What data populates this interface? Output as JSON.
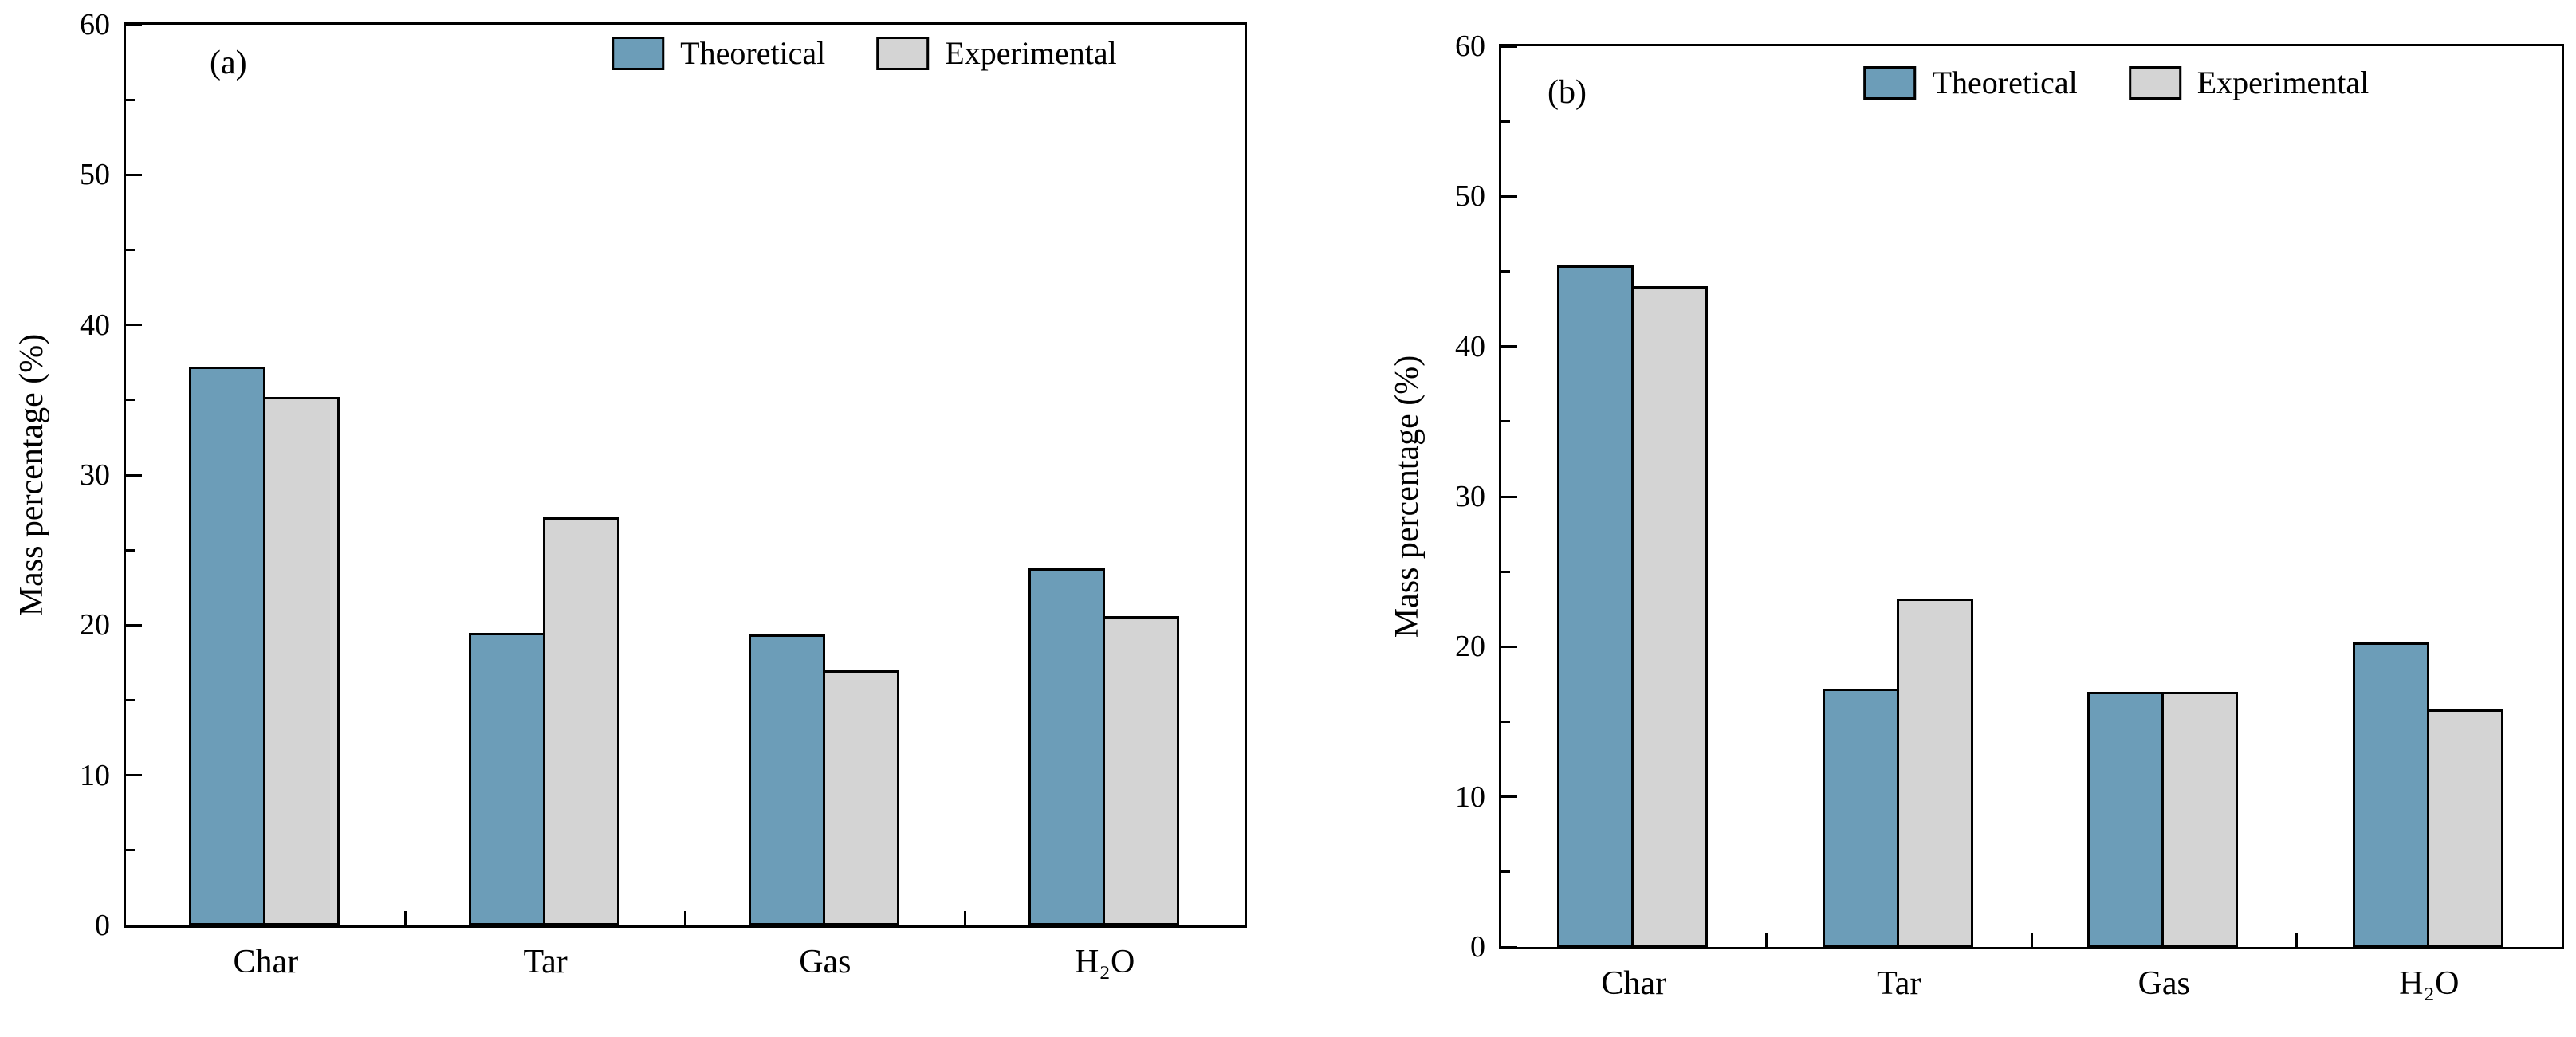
{
  "chart_data": [
    {
      "type": "bar",
      "panel_label": "(a)",
      "categories": [
        "Char",
        "Tar",
        "Gas",
        "H₂O"
      ],
      "series": [
        {
          "name": "Theoretical",
          "color": "#6c9db8",
          "values": [
            37.2,
            19.5,
            19.4,
            23.8
          ]
        },
        {
          "name": "Experimental",
          "color": "#d4d4d4",
          "values": [
            35.2,
            27.2,
            17.0,
            20.6
          ]
        }
      ],
      "ylabel": "Mass percentage (%)",
      "ylim": [
        0,
        60
      ],
      "ytick_major": 10,
      "ytick_minor": 5,
      "yticks": [
        "0",
        "10",
        "20",
        "30",
        "40",
        "50",
        "60"
      ],
      "legend_position": "top-center-inside",
      "grid": "off",
      "bar_edge_color": "#000000"
    },
    {
      "type": "bar",
      "panel_label": "(b)",
      "categories": [
        "Char",
        "Tar",
        "Gas",
        "H₂O"
      ],
      "series": [
        {
          "name": "Theoretical",
          "color": "#6c9db8",
          "values": [
            45.4,
            17.2,
            17.0,
            20.3
          ]
        },
        {
          "name": "Experimental",
          "color": "#d4d4d4",
          "values": [
            44.0,
            23.2,
            17.0,
            15.8
          ]
        }
      ],
      "ylabel": "Mass percentage (%)",
      "ylim": [
        0,
        60
      ],
      "ytick_major": 10,
      "ytick_minor": 5,
      "yticks": [
        "0",
        "10",
        "20",
        "30",
        "40",
        "50",
        "60"
      ],
      "legend_position": "top-center-inside",
      "grid": "off",
      "bar_edge_color": "#000000"
    }
  ]
}
